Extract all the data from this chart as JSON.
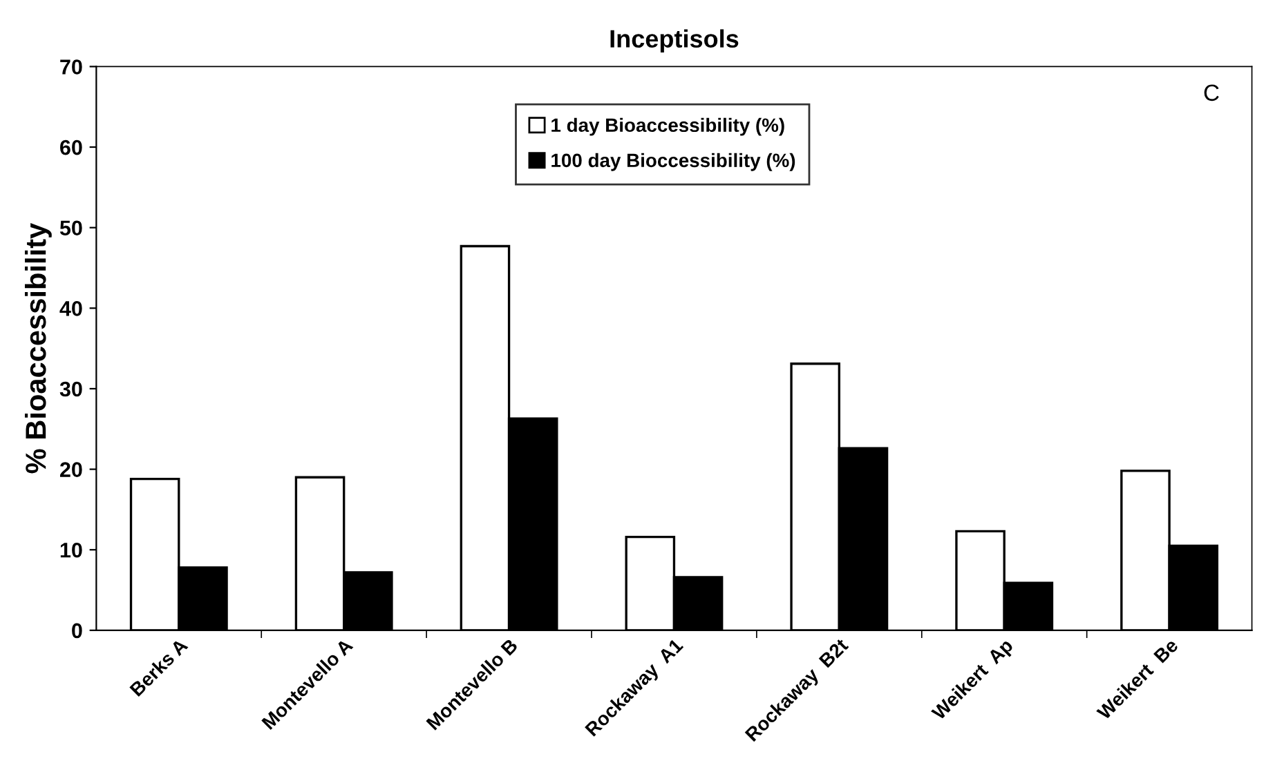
{
  "chart_data": {
    "type": "bar",
    "title": "Inceptisols",
    "ylabel": "% Bioaccessibility",
    "categories": [
      "Berks A",
      "Montevello A",
      "Montevello B",
      "Rockaway  A1",
      "Rockaway  B2t",
      "Weikert  Ap",
      "Weikert  Be"
    ],
    "series": [
      {
        "name": "1 day Bioaccessibility (%)",
        "color": "#ffffff",
        "values": [
          18.8,
          19.0,
          47.7,
          11.6,
          33.1,
          12.3,
          19.8
        ]
      },
      {
        "name": "100 day Bioccessibility (%)",
        "color": "#000000",
        "values": [
          7.8,
          7.2,
          26.3,
          6.6,
          22.6,
          5.9,
          10.5
        ]
      }
    ],
    "ylim": [
      0,
      70
    ],
    "yticks": [
      0,
      10,
      20,
      30,
      40,
      50,
      60,
      70
    ],
    "grid": false,
    "legend": "top",
    "annotations": [
      "C"
    ]
  }
}
